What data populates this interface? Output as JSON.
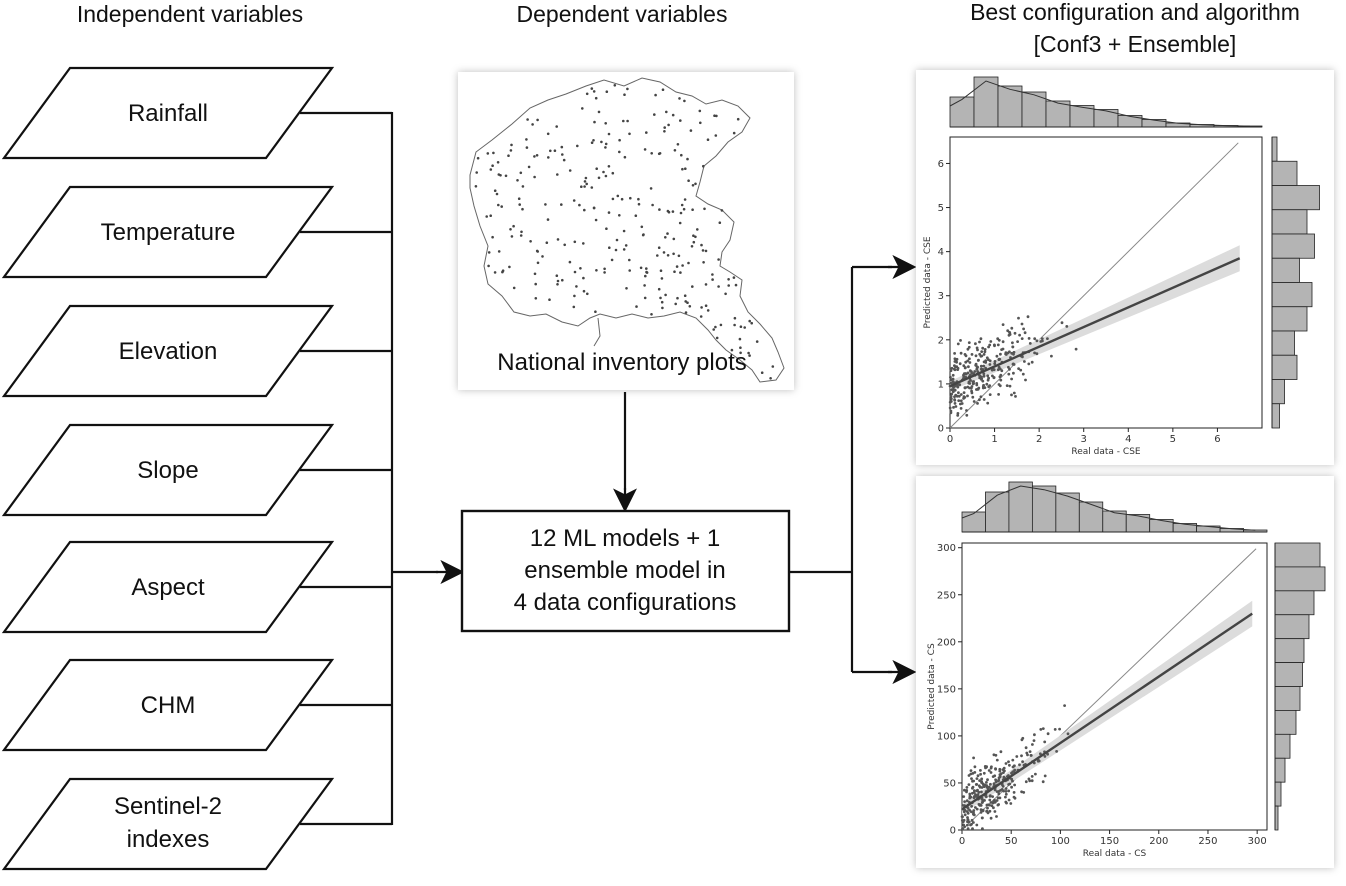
{
  "headers": {
    "independent": "Independent variables",
    "dependent": "Dependent variables",
    "best_line1": "Best configuration and algorithm",
    "best_line2": "[Conf3 + Ensemble]"
  },
  "independent_variables": [
    {
      "label": "Rainfall"
    },
    {
      "label": "Temperature"
    },
    {
      "label": "Elevation"
    },
    {
      "label": "Slope"
    },
    {
      "label": "Aspect"
    },
    {
      "label": "CHM"
    },
    {
      "label": "Sentinel-2",
      "label2": "indexes"
    }
  ],
  "map": {
    "label": "National inventory plots"
  },
  "model_box": {
    "line1": "12 ML models + 1",
    "line2": "ensemble model in",
    "line3": "4 data configurations"
  },
  "colors": {
    "line": "#111111",
    "point": "#555555",
    "bar": "#b4b4b4",
    "band": "#dcdcdc"
  },
  "chart_data": [
    {
      "type": "scatter",
      "xlabel": "Real data - CSE",
      "ylabel": "Predicted data - CSE",
      "xlim": [
        0,
        7
      ],
      "ylim": [
        0,
        6.6
      ],
      "xticks": [
        "0",
        "1",
        "2",
        "3",
        "4",
        "5",
        "6"
      ],
      "yticks": [
        "0",
        "1",
        "2",
        "3",
        "4",
        "5",
        "6"
      ],
      "regression": {
        "x": [
          0,
          6.5
        ],
        "y": [
          0.95,
          3.85
        ]
      },
      "identity": true,
      "top_histogram": [
        0.6,
        1.0,
        0.82,
        0.7,
        0.52,
        0.43,
        0.35,
        0.23,
        0.15,
        0.08,
        0.05,
        0.03,
        0.02
      ],
      "right_histogram": [
        0.1,
        0.5,
        0.95,
        0.7,
        0.85,
        0.55,
        0.8,
        0.7,
        0.45,
        0.5,
        0.25,
        0.15
      ]
    },
    {
      "type": "scatter",
      "xlabel": "Real data - CS",
      "ylabel": "Predicted data - CS",
      "xlim": [
        0,
        310
      ],
      "ylim": [
        0,
        305
      ],
      "xticks": [
        "0",
        "50",
        "100",
        "150",
        "200",
        "250",
        "300"
      ],
      "yticks": [
        "0",
        "50",
        "100",
        "150",
        "200",
        "250",
        "300"
      ],
      "regression": {
        "x": [
          0,
          295
        ],
        "y": [
          22,
          230
        ]
      },
      "identity": true,
      "top_histogram": [
        0.4,
        0.8,
        1.0,
        0.92,
        0.78,
        0.6,
        0.42,
        0.35,
        0.25,
        0.17,
        0.12,
        0.07,
        0.04
      ],
      "right_histogram": [
        0.9,
        1.0,
        0.78,
        0.68,
        0.58,
        0.55,
        0.5,
        0.42,
        0.3,
        0.2,
        0.12,
        0.06
      ]
    }
  ]
}
